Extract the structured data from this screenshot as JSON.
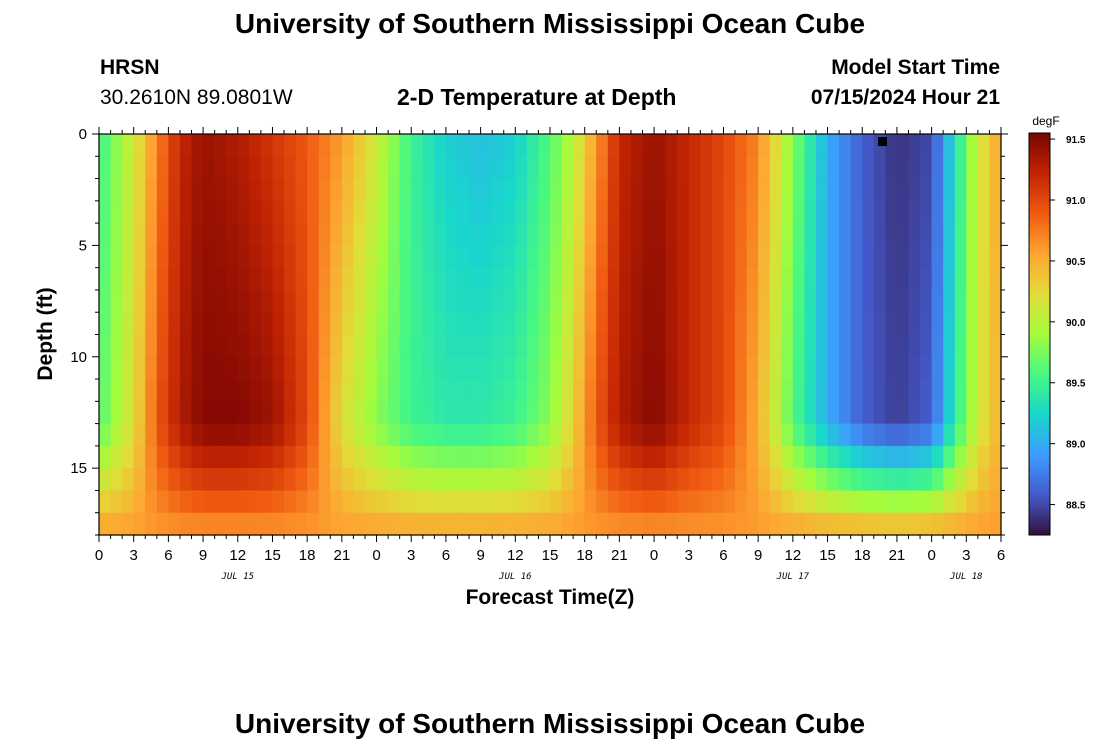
{
  "page": {
    "title_top": "University of Southern Mississippi Ocean Cube",
    "title_bottom": "University of Southern Mississippi Ocean Cube",
    "station": "HRSN",
    "coords": "30.2610N  89.0801W",
    "chart_title": "2-D Temperature at Depth",
    "model_label": "Model Start Time",
    "model_time": "07/15/2024 Hour 21"
  },
  "chart_data": {
    "type": "heatmap",
    "title": "2-D Temperature at Depth",
    "xlabel": "Forecast Time(Z)",
    "ylabel": "Depth (ft)",
    "x_range_hours": [
      0,
      78
    ],
    "x_tick_hours": [
      0,
      3,
      6,
      9,
      12,
      15,
      18,
      21,
      24,
      27,
      30,
      33,
      36,
      39,
      42,
      45,
      48,
      51,
      54,
      57,
      60,
      63,
      66,
      69,
      72,
      75,
      78
    ],
    "x_tick_labels": [
      "0",
      "3",
      "6",
      "9",
      "12",
      "15",
      "18",
      "21",
      "0",
      "3",
      "6",
      "9",
      "12",
      "15",
      "18",
      "21",
      "0",
      "3",
      "6",
      "9",
      "12",
      "15",
      "18",
      "21",
      "0",
      "3",
      "6"
    ],
    "date_labels": [
      {
        "text": "JUL 15",
        "hour": 12
      },
      {
        "text": "JUL 16",
        "hour": 36
      },
      {
        "text": "JUL 17",
        "hour": 60
      },
      {
        "text": "JUL 18",
        "hour": 75
      }
    ],
    "y_range_ft": [
      0,
      18
    ],
    "y_ticks": [
      0,
      5,
      10,
      15
    ],
    "y_tick_labels": [
      "0",
      "5",
      "10",
      "15"
    ],
    "colorbar": {
      "units": "degF",
      "min": 88.25,
      "max": 91.55,
      "ticks": [
        88.5,
        89.0,
        89.5,
        90.0,
        90.5,
        91.0,
        91.5
      ],
      "tick_labels": [
        "88.5",
        "89.0",
        "89.5",
        "90.0",
        "90.5",
        "91.0",
        "91.5"
      ]
    },
    "surface_profile_hours": [
      0,
      3,
      5,
      7,
      9,
      12,
      15,
      18,
      21,
      24,
      27,
      30,
      33,
      36,
      39,
      41,
      43,
      45,
      48,
      51,
      54,
      57,
      60,
      63,
      66,
      69,
      72,
      74,
      76,
      78
    ],
    "surface_profile_degF": [
      89.5,
      90.1,
      90.7,
      91.2,
      91.4,
      91.3,
      91.1,
      90.9,
      90.6,
      90.1,
      89.5,
      89.2,
      89.1,
      89.2,
      89.6,
      90.0,
      90.6,
      91.2,
      91.4,
      91.2,
      91.0,
      90.7,
      89.8,
      89.0,
      88.6,
      88.4,
      88.5,
      89.3,
      90.1,
      90.6
    ],
    "mid_depth_ft": 13,
    "mid_profile_hours": [
      0,
      3,
      5,
      7,
      9,
      12,
      15,
      18,
      21,
      24,
      27,
      30,
      33,
      36,
      39,
      41,
      43,
      45,
      48,
      51,
      54,
      57,
      60,
      63,
      66,
      69,
      72,
      74,
      76,
      78
    ],
    "mid_profile_degF": [
      89.6,
      90.2,
      90.9,
      91.3,
      91.5,
      91.5,
      91.4,
      91.0,
      90.2,
      89.8,
      89.5,
      89.4,
      89.4,
      89.5,
      89.8,
      90.3,
      90.9,
      91.3,
      91.5,
      91.2,
      91.0,
      90.5,
      89.6,
      89.0,
      88.6,
      88.45,
      88.6,
      89.4,
      90.1,
      90.5
    ],
    "bottom_layer_degF": 90.6
  }
}
